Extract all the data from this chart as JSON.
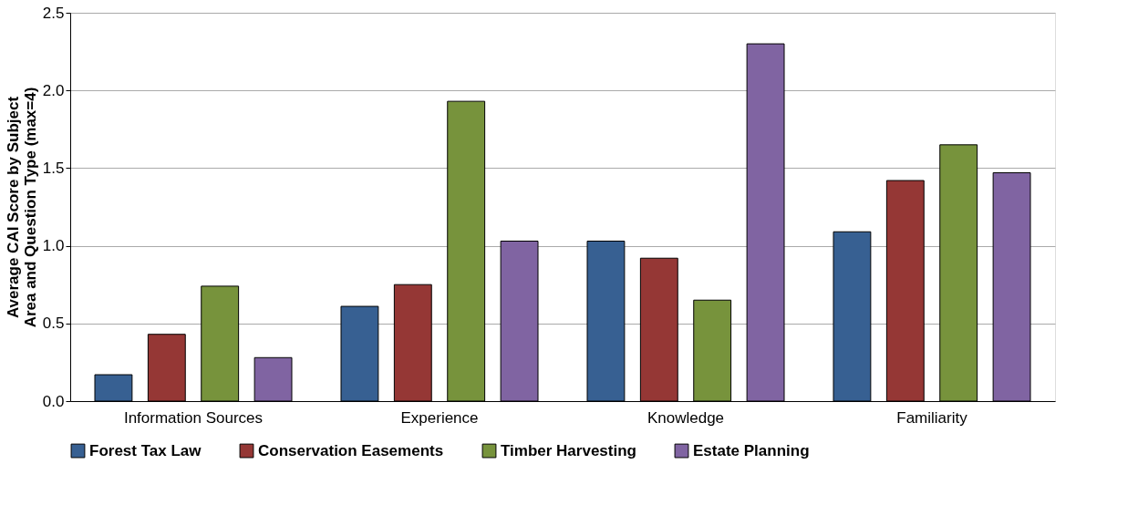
{
  "chart_data": {
    "type": "bar",
    "ylabel": "Average CAI Score by Subject Area and Question Type (max=4)",
    "categories": [
      "Information Sources",
      "Experience",
      "Knowledge",
      "Familiarity"
    ],
    "series": [
      {
        "name": "Forest Tax Law",
        "color": "#376092",
        "values": [
          0.17,
          0.61,
          1.03,
          1.09
        ]
      },
      {
        "name": "Conservation Easements",
        "color": "#953735",
        "values": [
          0.43,
          0.75,
          0.92,
          1.42
        ]
      },
      {
        "name": "Timber Harvesting",
        "color": "#77933c",
        "values": [
          0.74,
          1.93,
          0.65,
          1.65
        ]
      },
      {
        "name": "Estate Planning",
        "color": "#8064a2",
        "values": [
          0.28,
          1.03,
          2.3,
          1.47
        ]
      }
    ],
    "ylim": [
      0,
      2.5
    ],
    "yticks": [
      {
        "value": 0,
        "label": "0.0"
      },
      {
        "value": 0.5,
        "label": "0.5"
      },
      {
        "value": 1,
        "label": "1.0"
      },
      {
        "value": 1.5,
        "label": "1.5"
      },
      {
        "value": 2,
        "label": "2.0"
      },
      {
        "value": 2.5,
        "label": "2.5"
      }
    ],
    "grid": "y",
    "legend": "bottom"
  }
}
